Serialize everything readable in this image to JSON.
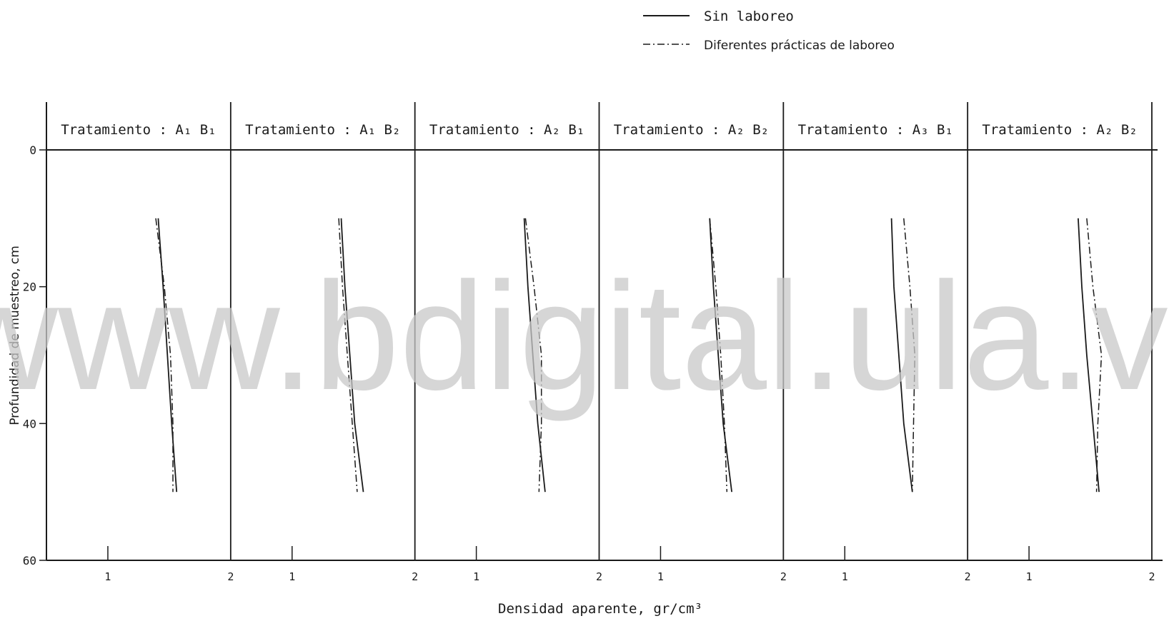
{
  "watermark": "www.bdigital.ula.ve",
  "chart_data": {
    "type": "line",
    "xlabel": "Densidad aparente, gr/cm³",
    "ylabel": "Profundidad de muestreo, cm",
    "ylim": [
      0,
      60
    ],
    "y_ticks": [
      "0",
      "20",
      "40",
      "60"
    ],
    "xlim": [
      0.5,
      2
    ],
    "legend": {
      "placement": "top-right",
      "entries": [
        {
          "label": "Sin laboreo",
          "style": "solid"
        },
        {
          "label": "Diferentes prácticas de laboreo",
          "style": "dash-dot"
        }
      ]
    },
    "panels": [
      {
        "title": "Tratamiento : A₁ B₁",
        "x_ticks": [
          "1",
          "2"
        ],
        "series": [
          {
            "style": "solid",
            "points": [
              [
                1.41,
                10
              ],
              [
                1.45,
                20
              ],
              [
                1.52,
                40
              ],
              [
                1.56,
                50
              ]
            ]
          },
          {
            "style": "dash-dot",
            "points": [
              [
                1.39,
                10
              ],
              [
                1.46,
                20
              ],
              [
                1.51,
                30
              ],
              [
                1.53,
                40
              ],
              [
                1.53,
                50
              ]
            ]
          }
        ]
      },
      {
        "title": "Tratamiento : A₁ B₂",
        "x_ticks": [
          "1",
          "2"
        ],
        "series": [
          {
            "style": "solid",
            "points": [
              [
                1.4,
                10
              ],
              [
                1.43,
                20
              ],
              [
                1.47,
                30
              ],
              [
                1.51,
                40
              ],
              [
                1.58,
                50
              ]
            ]
          },
          {
            "style": "dash-dot",
            "points": [
              [
                1.38,
                10
              ],
              [
                1.41,
                20
              ],
              [
                1.45,
                30
              ],
              [
                1.49,
                40
              ],
              [
                1.53,
                50
              ]
            ]
          }
        ]
      },
      {
        "title": "Tratamiento : A₂ B₁",
        "x_ticks": [
          "1",
          "2"
        ],
        "series": [
          {
            "style": "solid",
            "points": [
              [
                1.39,
                10
              ],
              [
                1.42,
                20
              ],
              [
                1.46,
                30
              ],
              [
                1.5,
                40
              ],
              [
                1.56,
                50
              ]
            ]
          },
          {
            "style": "dash-dot",
            "points": [
              [
                1.4,
                10
              ],
              [
                1.47,
                20
              ],
              [
                1.53,
                30
              ],
              [
                1.53,
                40
              ],
              [
                1.51,
                50
              ]
            ]
          }
        ]
      },
      {
        "title": "Tratamiento : A₂ B₂",
        "x_ticks": [
          "1",
          "2"
        ],
        "series": [
          {
            "style": "solid",
            "points": [
              [
                1.4,
                10
              ],
              [
                1.43,
                20
              ],
              [
                1.47,
                30
              ],
              [
                1.51,
                40
              ],
              [
                1.58,
                50
              ]
            ]
          },
          {
            "style": "dash-dot",
            "points": [
              [
                1.4,
                10
              ],
              [
                1.45,
                20
              ],
              [
                1.49,
                30
              ],
              [
                1.52,
                40
              ],
              [
                1.54,
                50
              ]
            ]
          }
        ]
      },
      {
        "title": "Tratamiento : A₃ B₁",
        "x_ticks": [
          "1",
          "2"
        ],
        "series": [
          {
            "style": "solid",
            "points": [
              [
                1.38,
                10
              ],
              [
                1.4,
                20
              ],
              [
                1.44,
                30
              ],
              [
                1.48,
                40
              ],
              [
                1.55,
                50
              ]
            ]
          },
          {
            "style": "dash-dot",
            "points": [
              [
                1.48,
                10
              ],
              [
                1.53,
                20
              ],
              [
                1.57,
                30
              ],
              [
                1.56,
                40
              ],
              [
                1.55,
                50
              ]
            ]
          }
        ]
      },
      {
        "title": "Tratamiento : A₂ B₂",
        "x_ticks": [
          "1",
          "2"
        ],
        "series": [
          {
            "style": "solid",
            "points": [
              [
                1.4,
                10
              ],
              [
                1.43,
                20
              ],
              [
                1.47,
                30
              ],
              [
                1.52,
                40
              ],
              [
                1.57,
                50
              ]
            ]
          },
          {
            "style": "dash-dot",
            "points": [
              [
                1.47,
                10
              ],
              [
                1.52,
                20
              ],
              [
                1.59,
                30
              ],
              [
                1.56,
                40
              ],
              [
                1.55,
                50
              ]
            ]
          }
        ]
      }
    ]
  }
}
